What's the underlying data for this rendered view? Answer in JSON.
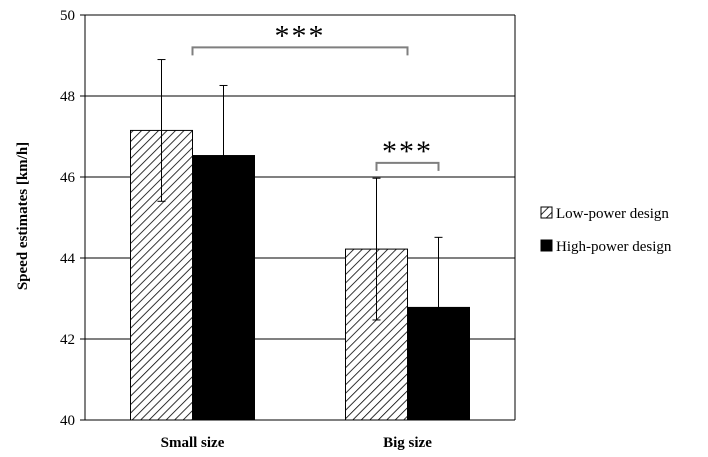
{
  "chart_data": {
    "type": "bar",
    "title": "",
    "xlabel": "",
    "ylabel": "Speed estimates [km/h]",
    "ylim": [
      40,
      50
    ],
    "yticks": [
      40,
      42,
      44,
      46,
      48,
      50
    ],
    "grid": true,
    "legend_position": "right",
    "categories": [
      "Small size",
      "Big size"
    ],
    "series": [
      {
        "name": "Low-power design",
        "pattern": "diagonal-hatch",
        "color": "#000000",
        "values": [
          47.15,
          44.22
        ],
        "error": [
          1.75,
          1.75
        ]
      },
      {
        "name": "High-power design",
        "pattern": "solid",
        "color": "#000000",
        "values": [
          46.53,
          42.78
        ],
        "error": [
          1.73,
          1.73
        ]
      }
    ],
    "annotations": [
      {
        "text": "***",
        "from": "Small size",
        "to": "Big size",
        "series": "Low-power design",
        "y": 49.2
      },
      {
        "text": "***",
        "from": "Big size",
        "to": "Big size",
        "series": "both",
        "y": 46.35
      }
    ]
  }
}
